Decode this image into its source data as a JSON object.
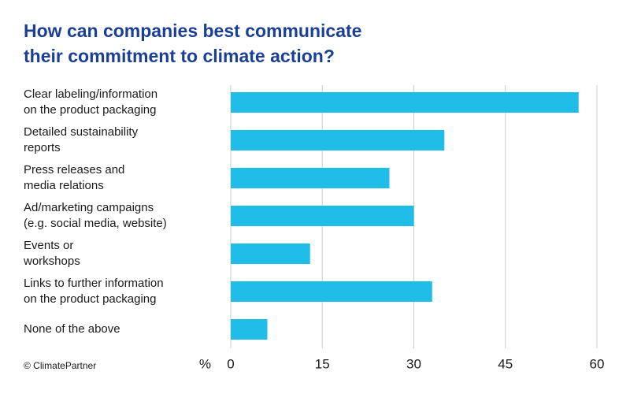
{
  "chart_data": {
    "type": "barh",
    "title": [
      "How can companies best communicate",
      "their commitment to climate action?"
    ],
    "categories": [
      "Clear labeling/information\non the product packaging",
      "Detailed sustainability\nreports",
      "Press releases and\nmedia relations",
      "Ad/marketing campaigns\n(e.g. social media, website)",
      "Events or\nworkshops",
      "Links to further information\non the product packaging",
      "None of the above"
    ],
    "values": [
      57,
      35,
      26,
      30,
      13,
      33,
      6
    ],
    "color": "#1fbde8",
    "xlim": [
      0,
      60
    ],
    "xticks": [
      0,
      15,
      30,
      45,
      60
    ],
    "grid": true,
    "x_unit": "%",
    "source": "© ClimatePartner"
  }
}
